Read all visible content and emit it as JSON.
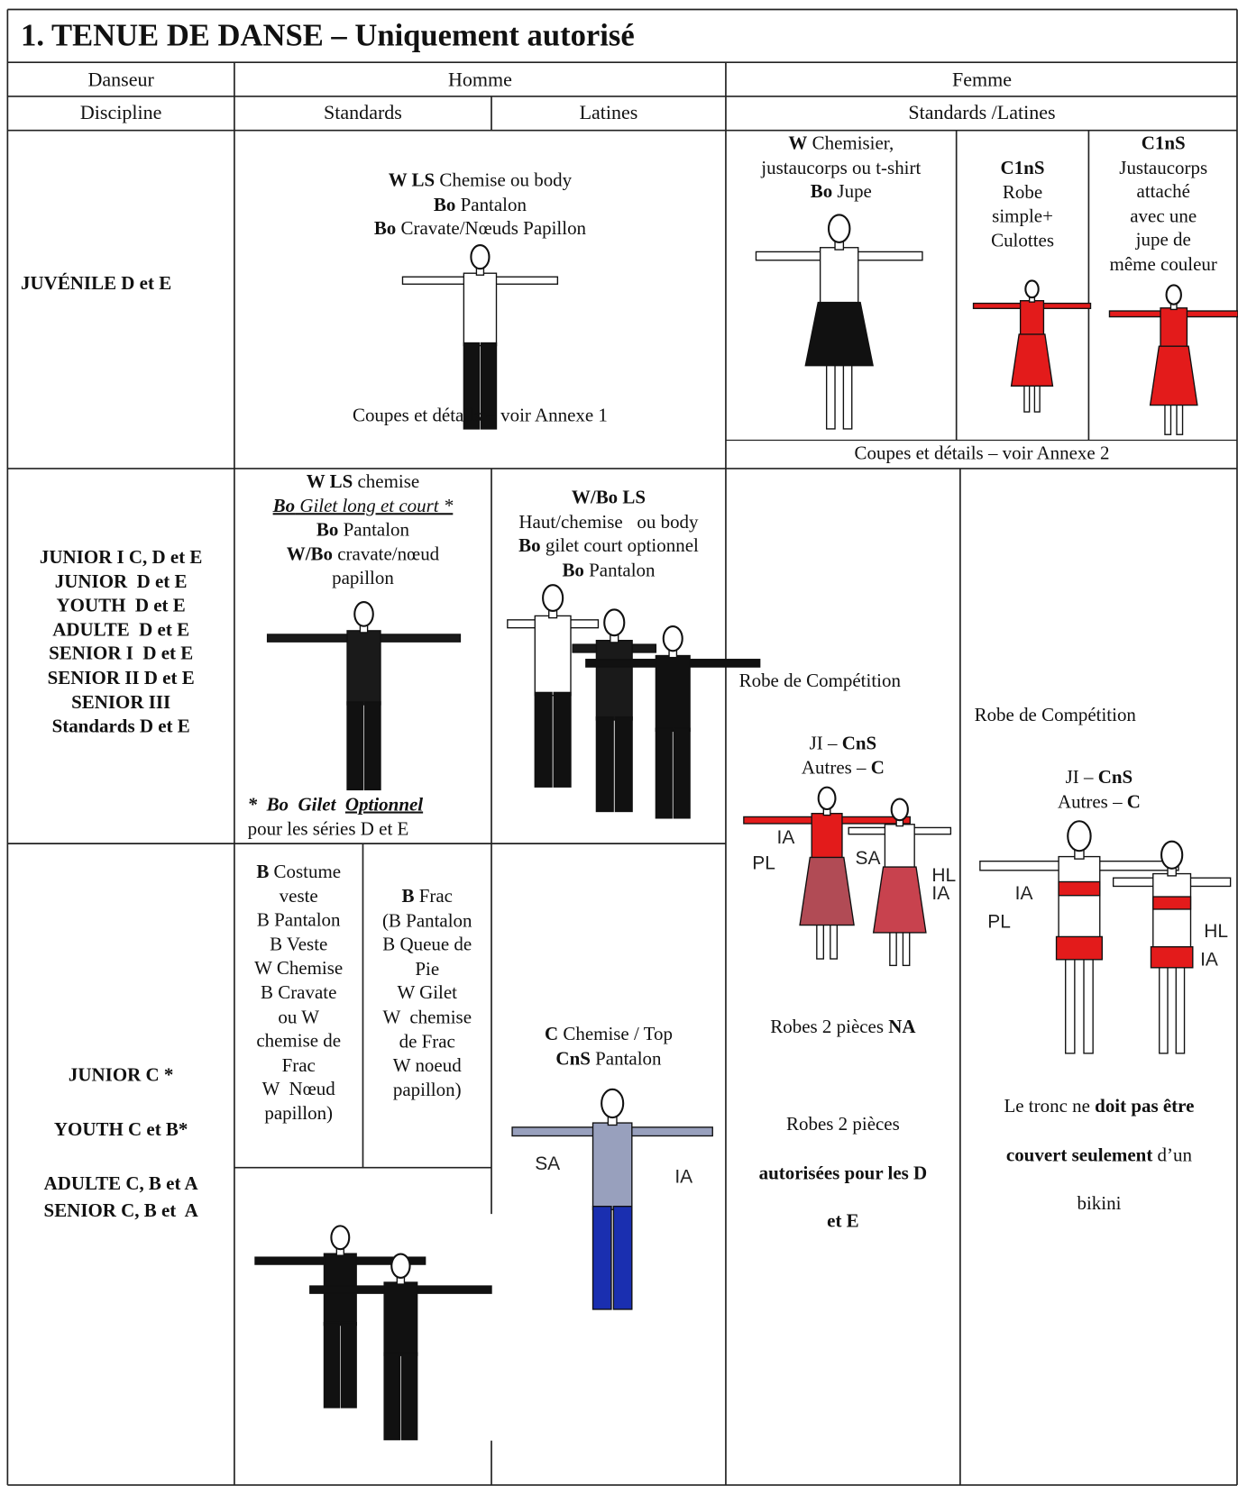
{
  "title": "1. TENUE DE DANSE – Uniquement autorisé",
  "header": {
    "danseur": "Danseur",
    "homme": "Homme",
    "femme": "Femme",
    "discipline": "Discipline",
    "standards": "Standards",
    "latines": "Latines",
    "standards_latines": "Standards /Latines"
  },
  "rows": [
    {
      "label": {
        "lines": [
          [
            {
              "b": "JUVÉNILE D et E"
            }
          ]
        ]
      },
      "homme": {
        "lines": [
          [
            {
              "b": "W LS"
            },
            " Chemise ou body"
          ],
          [
            {
              "b": "Bo"
            },
            " Pantalon"
          ],
          [
            {
              "b": "Bo"
            },
            " Cravate/Nœuds Papillon"
          ]
        ]
      },
      "homme_note": {
        "lines": [
          [
            "Coupes et détails – voir Annexe 1"
          ]
        ]
      },
      "femme_1": {
        "lines": [
          [
            {
              "b": "W"
            },
            " Chemisier,"
          ],
          [
            "justaucorps ou t-shirt"
          ],
          [
            {
              "b": "Bo"
            },
            " Jupe"
          ]
        ]
      },
      "femme_2": {
        "lines": [
          [
            {
              "b": "C1nS"
            }
          ],
          [
            "Robe"
          ],
          [
            "simple+"
          ],
          [
            "Culottes"
          ]
        ]
      },
      "femme_3": {
        "lines": [
          [
            {
              "b": "C1nS"
            }
          ],
          [
            "Justaucorps"
          ],
          [
            "attaché"
          ],
          [
            "avec une"
          ],
          [
            "jupe de"
          ],
          [
            "même couleur"
          ]
        ]
      },
      "femme_note": {
        "lines": [
          [
            "Coupes et détails – voir Annexe 2"
          ]
        ]
      }
    },
    {
      "label": {
        "lines": [
          [
            {
              "b": "JUNIOR I C, D et E"
            }
          ],
          [
            {
              "b": "JUNIOR  D et E"
            }
          ],
          [
            {
              "b": "YOUTH  D et E"
            }
          ],
          [
            {
              "b": "ADULTE  D et E"
            }
          ],
          [
            {
              "b": "SENIOR I  D et E"
            }
          ],
          [
            {
              "b": "SENIOR II D et E"
            }
          ],
          [
            {
              "b": "SENIOR III"
            }
          ],
          [
            {
              "b": "Standards D et E"
            }
          ]
        ]
      },
      "standards": {
        "lines": [
          [
            {
              "b": "W LS"
            },
            " chemise"
          ],
          [
            {
              "biu": "Bo"
            },
            {
              "iu": " Gilet long et court *"
            }
          ],
          [
            {
              "b": "Bo"
            },
            " Pantalon"
          ],
          [
            {
              "b": "W/Bo"
            },
            " cravate/nœud"
          ],
          [
            "papillon"
          ]
        ]
      },
      "standards_note": {
        "lines": [
          [
            {
              "bi": "*  Bo  Gilet  "
            },
            {
              "biu": "Optionnel"
            }
          ],
          [
            "pour les séries D et E"
          ]
        ]
      },
      "latines": {
        "lines": [
          [
            {
              "b": "W/Bo LS"
            }
          ],
          [
            "Haut/chemise   ou body"
          ],
          [
            {
              "b": "Bo"
            },
            " gilet court optionnel"
          ],
          [
            {
              "b": "Bo"
            },
            " Pantalon"
          ]
        ]
      },
      "femme_1_title": {
        "lines": [
          [
            "Robe de Compétition"
          ]
        ]
      },
      "femme_1": {
        "lines": [
          [
            "JI – ",
            {
              "b": "CnS"
            }
          ],
          [
            "Autres – ",
            {
              "b": "C"
            }
          ]
        ]
      },
      "femme_1_note": {
        "lines": [
          [
            "Robes 2 pièces ",
            {
              "b": "NA"
            }
          ],
          [
            ""
          ],
          [
            "Robes 2 pièces"
          ],
          [
            {
              "b": "autorisées pour les D"
            }
          ],
          [
            {
              "b": "et E"
            }
          ]
        ]
      },
      "femme_2_title": {
        "lines": [
          [
            "Robe de Compétition"
          ]
        ]
      },
      "femme_2": {
        "lines": [
          [
            "JI – ",
            {
              "b": "CnS"
            }
          ],
          [
            "Autres – ",
            {
              "b": "C"
            }
          ]
        ]
      },
      "femme_2_note": {
        "lines": [
          [
            "Le tronc ne ",
            {
              "b": "doit pas être"
            }
          ],
          [
            {
              "b": "couvert seulement"
            },
            " d’un"
          ],
          [
            "bikini"
          ]
        ]
      }
    },
    {
      "label": {
        "lines": [
          [
            {
              "b": "JUNIOR C *"
            }
          ],
          [
            {
              "b": "YOUTH C et B*"
            }
          ],
          [
            {
              "b": "ADULTE C, B et A"
            }
          ],
          [
            {
              "b": "SENIOR C, B et  A"
            }
          ]
        ]
      },
      "standards_1": {
        "lines": [
          [
            {
              "b": "B"
            },
            " Costume"
          ],
          [
            "veste"
          ],
          [
            "B Pantalon"
          ],
          [
            "B Veste"
          ],
          [
            "W Chemise"
          ],
          [
            "B Cravate"
          ],
          [
            "ou W"
          ],
          [
            "chemise de"
          ],
          [
            "Frac"
          ],
          [
            "W  Nœud"
          ],
          [
            "papillon)"
          ]
        ]
      },
      "standards_2": {
        "lines": [
          [
            {
              "b": "B"
            },
            " Frac"
          ],
          [
            "(B Pantalon"
          ],
          [
            "B Queue de"
          ],
          [
            "Pie"
          ],
          [
            "W Gilet"
          ],
          [
            "W  chemise"
          ],
          [
            "de Frac"
          ],
          [
            "W noeud"
          ],
          [
            "papillon)"
          ]
        ]
      },
      "latines": {
        "lines": [
          [
            {
              "b": "C"
            },
            " Chemise / Top"
          ],
          [
            {
              "b": "CnS"
            },
            " Pantalon"
          ]
        ]
      }
    }
  ],
  "figure_labels": {
    "latines": [
      "SA",
      "IA"
    ],
    "robe": [
      "IA",
      "PL",
      "SA",
      "HL",
      "IA"
    ],
    "bikini": [
      "IA",
      "PL",
      "HL",
      "IA"
    ]
  }
}
